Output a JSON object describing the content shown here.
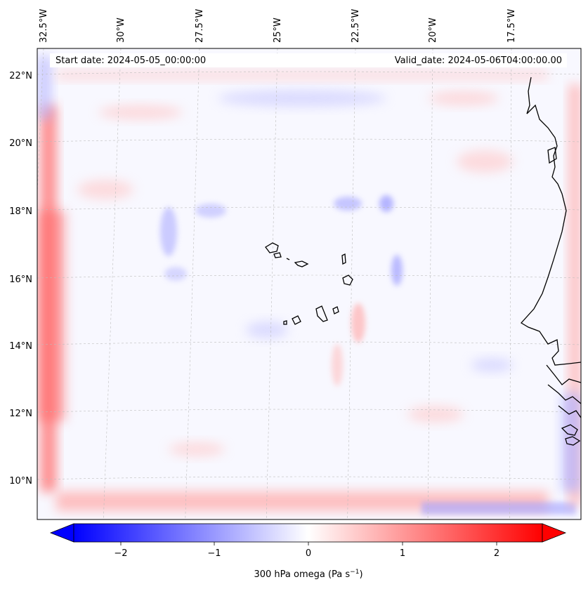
{
  "map": {
    "start_label": "Start date: 2024-05-05_00:00:00",
    "valid_label": "Valid_date: 2024-05-06T04:00:00.00",
    "lon_labels": [
      "32.5°W",
      "30°W",
      "27.5°W",
      "25°W",
      "22.5°W",
      "20°W",
      "17.5°W"
    ],
    "lat_labels": [
      "22°N",
      "20°N",
      "18°N",
      "16°N",
      "14°N",
      "12°N",
      "10°N"
    ],
    "coastline_color": "#000000",
    "gridlines": true
  },
  "colorbar": {
    "ticks": [
      "−2",
      "−1",
      "0",
      "1",
      "2"
    ],
    "label": "300 hPa omega (Pa s",
    "label_sup": "−1",
    "label_end": ")",
    "range": [
      -2.7,
      2.7
    ],
    "colormap": "bwr",
    "extend": "both"
  }
}
